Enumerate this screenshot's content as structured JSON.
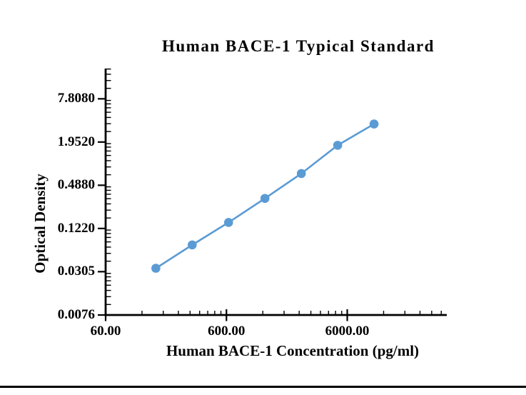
{
  "page": {
    "background_color": "#ffffff",
    "footer_divider_color": "#000000"
  },
  "chart_data": {
    "type": "line",
    "title": "Human BACE-1 Typical Standard",
    "xlabel": "Human BACE-1 Concentration (pg/ml)",
    "ylabel": "Optical Density",
    "x_scale": "log",
    "y_scale": "log",
    "x_range": [
      60,
      40000
    ],
    "y_range": [
      0.0076,
      20.6
    ],
    "grid": false,
    "legend": false,
    "axis_color": "#000000",
    "x_ticks": {
      "values": [
        60,
        600,
        6000
      ],
      "labels": [
        "60.00",
        "600.00",
        "6000.00"
      ]
    },
    "y_ticks": {
      "values": [
        7.808,
        1.952,
        0.488,
        0.122,
        0.0305,
        0.0076
      ],
      "labels": [
        "7.8080",
        "1.9520",
        "0.4880",
        "0.1220",
        "0.0305",
        "0.0076"
      ]
    },
    "series": [
      {
        "name": "Typical Standard",
        "x": [
          156.25,
          312.5,
          625,
          1250,
          2500,
          5000,
          10000
        ],
        "y": [
          0.034,
          0.072,
          0.148,
          0.32,
          0.71,
          1.76,
          3.48
        ],
        "color": "#5B9BD5",
        "marker": "circle",
        "marker_radius": 6.3,
        "line_width": 2.6
      }
    ]
  }
}
